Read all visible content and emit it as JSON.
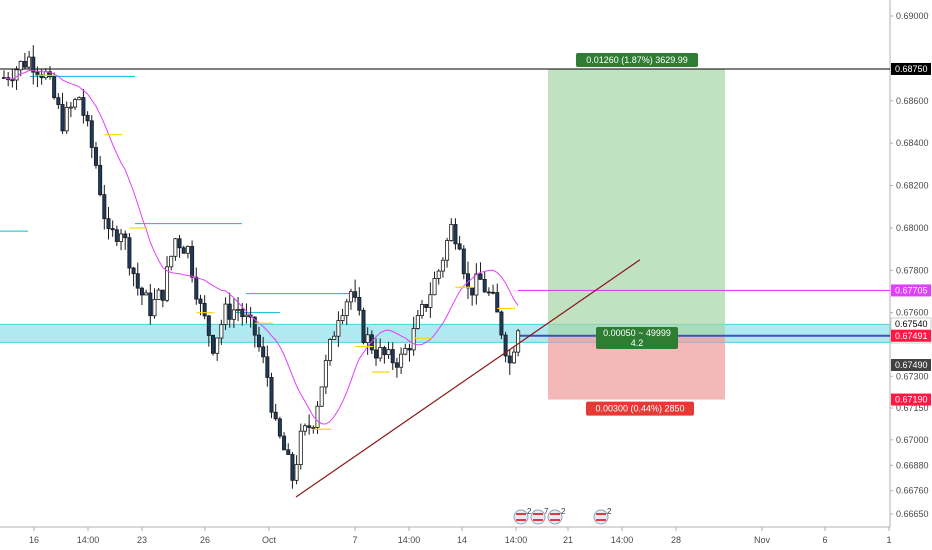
{
  "chart_data": {
    "type": "candlestick",
    "y_axis": {
      "range": [
        0.6662,
        0.6905
      ],
      "ticks": [
        "0.69000",
        "0.68750",
        "0.68600",
        "0.68400",
        "0.68200",
        "0.68000",
        "0.67800",
        "0.67705",
        "0.67600",
        "0.67540",
        "49:24",
        "0.67491",
        "0.67490",
        "0.67300",
        "0.67190",
        "0.67150",
        "0.67000",
        "0.66880",
        "0.66760",
        "0.66650"
      ]
    },
    "x_axis": {
      "ticks": [
        "16",
        "14:00",
        "23",
        "26",
        "Oct",
        "7",
        "14:00",
        "14",
        "14:00",
        "21",
        "14:00",
        "28",
        "Nov",
        "6",
        "1"
      ]
    },
    "price_tags": {
      "target": {
        "value": "0.68750",
        "color": "#000000"
      },
      "magenta_level": {
        "value": "0.67705",
        "color": "#e040fb"
      },
      "last": {
        "value": "0.67540",
        "color": "#ffffff"
      },
      "countdown": {
        "value": "49:24",
        "color": "#ffffff"
      },
      "entry": {
        "value": "0.67491",
        "color": "#ff1744"
      },
      "close": {
        "value": "0.67490",
        "color": "#424242"
      },
      "stop": {
        "value": "0.67190",
        "color": "#ff1744"
      }
    },
    "position": {
      "entry": 0.67491,
      "target": 0.6875,
      "stop": 0.6719,
      "profit_label": "0.01260 (1.87%) 3629.99",
      "ratio_label": "0.00050 ~ 49999",
      "ratio_value": "4.2",
      "loss_label": "0.00300 (0.44%) 2850",
      "profit_color": "#a5d6a7",
      "loss_color": "#ef9a9a"
    },
    "support_zone": {
      "low": 0.6746,
      "high": 0.67545,
      "color": "#4dd0e1"
    },
    "trendline": {
      "from": [
        0.6673,
        0
      ],
      "to": [
        0.6785,
        1
      ],
      "color": "#8b1a1a"
    },
    "events": [
      {
        "flag": "us",
        "count": "2"
      },
      {
        "flag": "us",
        "count": "7"
      },
      {
        "flag": "us",
        "count": "2"
      },
      {
        "flag": "us",
        "count": "2"
      }
    ],
    "colors": {
      "up_body": "#ffffff",
      "down_body": "#1e3a5f",
      "wick": "#1a1a1a",
      "ma": "#e040fb",
      "short_levels": "#ffd600",
      "cyan_levels": "#00bcd4"
    }
  }
}
